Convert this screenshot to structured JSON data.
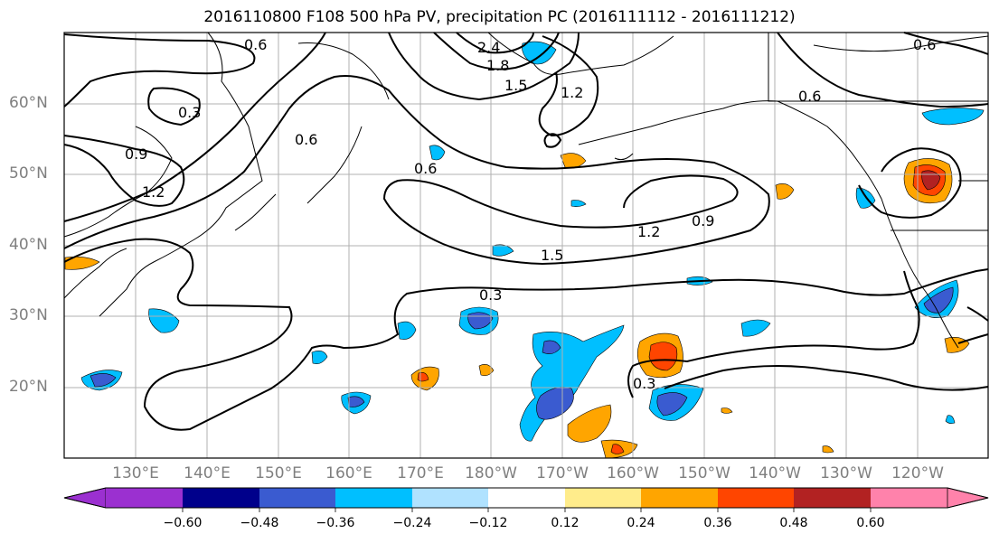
{
  "title": "2016110800 F108 500 hPa PV, precipitation PC (2016111112 - 2016111212)",
  "lat_labels": [
    "60°N",
    "50°N",
    "40°N",
    "30°N",
    "20°N"
  ],
  "lon_labels": [
    "130°E",
    "140°E",
    "150°E",
    "160°E",
    "170°E",
    "180°W",
    "170°W",
    "160°W",
    "150°W",
    "140°W",
    "130°W",
    "120°W"
  ],
  "contour_labels": [
    "0.3",
    "0.9",
    "1.2",
    "0.6",
    "0.6",
    "2.4",
    "1.8",
    "1.5",
    "1.2",
    "0.6",
    "1.5",
    "1.2",
    "0.9",
    "0.3",
    "0.3",
    "0.6",
    "0.6"
  ],
  "colorbar": {
    "tick_labels": [
      "−0.60",
      "−0.48",
      "−0.36",
      "−0.24",
      "−0.12",
      "0.12",
      "0.24",
      "0.36",
      "0.48",
      "0.60"
    ],
    "colors": [
      "#9b30d0",
      "#00008b",
      "#3a5bd0",
      "#00bfff",
      "#b0e2ff",
      "#ffffff",
      "#ffec8b",
      "#ffa500",
      "#ff4500",
      "#b22222",
      "#ff82ab"
    ]
  }
}
